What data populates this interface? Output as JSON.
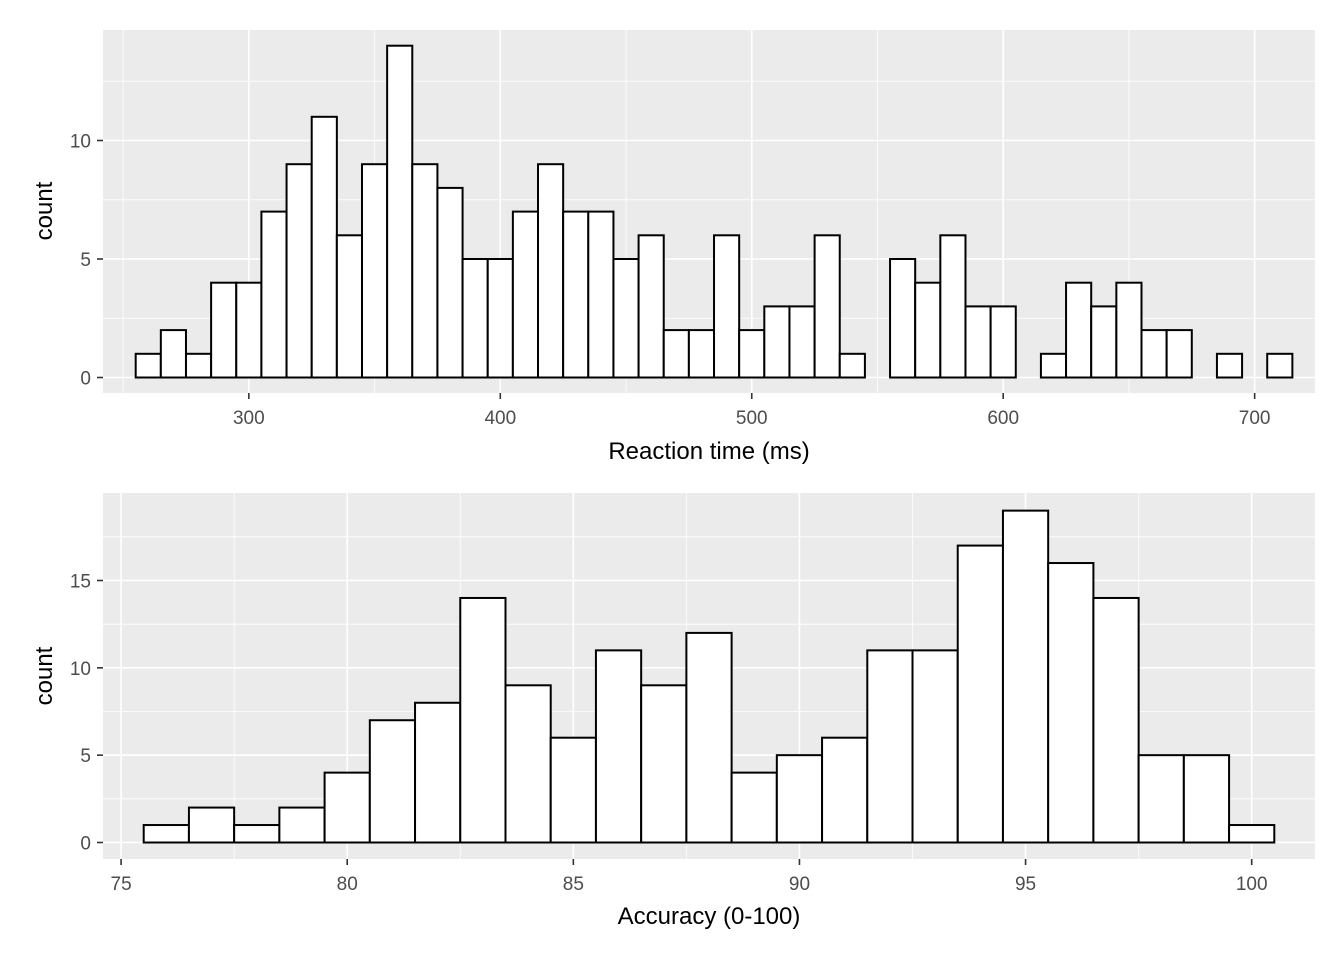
{
  "chart_data": [
    {
      "type": "bar",
      "subtype": "histogram",
      "xlabel": "Reaction time (ms)",
      "ylabel": "count",
      "xlim": [
        242,
        724
      ],
      "ylim": [
        0,
        14
      ],
      "binwidth": 10,
      "x_ticks": [
        300,
        400,
        500,
        600,
        700
      ],
      "y_ticks": [
        0,
        5,
        10
      ],
      "x_tick_labels": [
        "300",
        "400",
        "500",
        "600",
        "700"
      ],
      "y_tick_labels": [
        "0",
        "5",
        "10"
      ],
      "bin_centers": [
        260,
        270,
        280,
        290,
        300,
        310,
        320,
        330,
        340,
        350,
        360,
        370,
        380,
        390,
        400,
        410,
        420,
        430,
        440,
        450,
        460,
        470,
        480,
        490,
        500,
        510,
        520,
        530,
        540,
        550,
        560,
        570,
        580,
        590,
        600,
        610,
        620,
        630,
        640,
        650,
        660,
        670,
        680,
        690,
        700,
        710
      ],
      "counts": [
        1,
        2,
        1,
        4,
        4,
        7,
        9,
        11,
        6,
        9,
        14,
        9,
        8,
        5,
        5,
        7,
        9,
        7,
        7,
        5,
        6,
        2,
        2,
        6,
        2,
        3,
        3,
        6,
        1,
        0,
        5,
        4,
        6,
        3,
        3,
        0,
        1,
        4,
        3,
        4,
        2,
        2,
        0,
        1,
        0,
        1
      ],
      "grid": true
    },
    {
      "type": "bar",
      "subtype": "histogram",
      "xlabel": "Accuracy (0-100)",
      "ylabel": "count",
      "xlim": [
        74.6,
        101.4
      ],
      "ylim": [
        0,
        19
      ],
      "binwidth": 1,
      "x_ticks": [
        75,
        80,
        85,
        90,
        95,
        100
      ],
      "y_ticks": [
        0,
        5,
        10,
        15
      ],
      "x_tick_labels": [
        "75",
        "80",
        "85",
        "90",
        "95",
        "100"
      ],
      "y_tick_labels": [
        "0",
        "5",
        "10",
        "15"
      ],
      "bin_centers": [
        76,
        77,
        78,
        79,
        80,
        81,
        82,
        83,
        84,
        85,
        86,
        87,
        88,
        89,
        90,
        91,
        92,
        93,
        94,
        95,
        96,
        97,
        98,
        99,
        100
      ],
      "counts": [
        1,
        2,
        1,
        2,
        4,
        7,
        8,
        14,
        9,
        6,
        11,
        9,
        12,
        4,
        5,
        6,
        11,
        11,
        17,
        19,
        16,
        14,
        5,
        5,
        1
      ],
      "grid": true
    }
  ]
}
